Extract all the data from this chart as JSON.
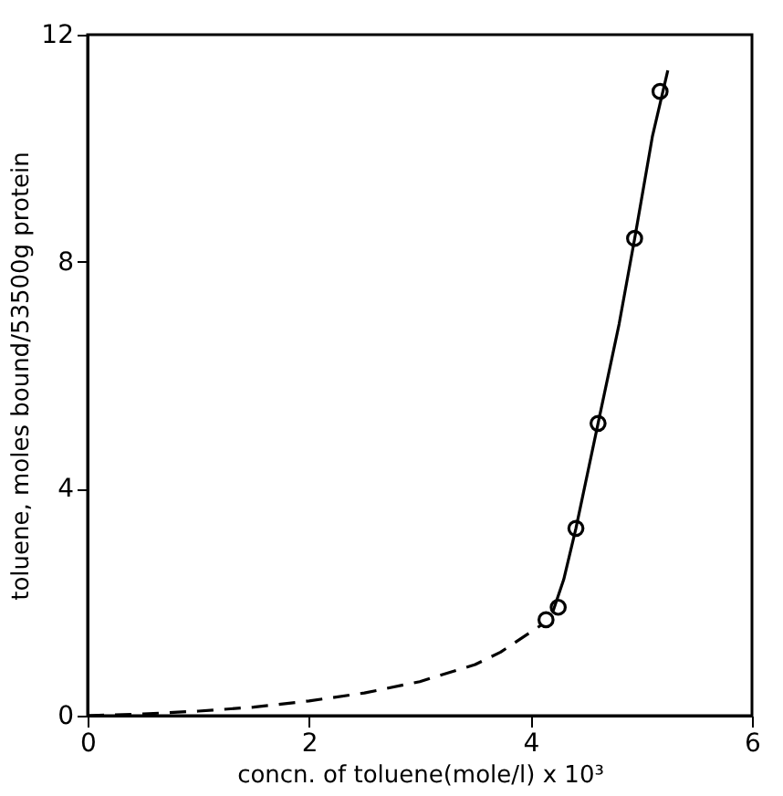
{
  "chart_data": {
    "type": "line",
    "xlabel": "concn. of toluene(mole/l) x 10³",
    "ylabel": "toluene, moles bound/53500g protein",
    "xlim": [
      0,
      6
    ],
    "xticks": [
      0,
      2,
      4,
      6
    ],
    "ylim": [
      0,
      12
    ],
    "yticks": [
      0,
      4,
      8,
      12
    ],
    "grid": false,
    "series": [
      {
        "type": "line",
        "line_style": "dashed",
        "marker": "none",
        "color": "#000000",
        "x": [
          0,
          0.5,
          1,
          1.5,
          2,
          2.5,
          3,
          3.5,
          3.73,
          4.1
        ],
        "values": [
          0,
          0.03,
          0.08,
          0.15,
          0.26,
          0.4,
          0.6,
          0.9,
          1.12,
          1.6
        ]
      },
      {
        "type": "line",
        "line_style": "solid",
        "marker": "none",
        "color": "#000000",
        "x": [
          4.2,
          4.3,
          4.41,
          4.61,
          4.8,
          4.94,
          5.1,
          5.24
        ],
        "values": [
          1.82,
          2.4,
          3.3,
          5.15,
          6.9,
          8.4,
          10.2,
          11.37
        ]
      },
      {
        "type": "scatter",
        "marker": "circle",
        "color": "#000000",
        "x": [
          4.14,
          4.25,
          4.41,
          4.61,
          4.94,
          5.17
        ],
        "values": [
          1.69,
          1.91,
          3.3,
          5.15,
          8.41,
          11.0
        ]
      }
    ]
  }
}
